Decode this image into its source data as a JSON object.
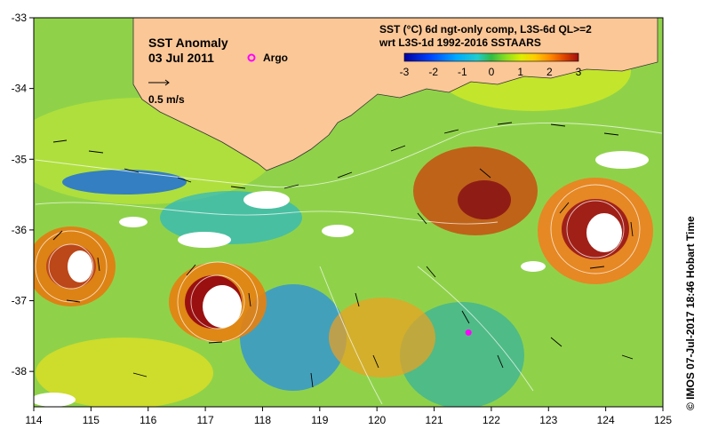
{
  "map": {
    "title": "SST Anomaly",
    "date": "03 Jul 2011",
    "scale_label": "0.5 m/s",
    "argo_label": "Argo",
    "argo_color": "#ff00ff",
    "land_color": "#fbc797",
    "product_line1": "SST (°C) 6d ngt-only comp, L3S-6d QL>=2",
    "product_line2": "wrt L3S-1d 1992-2016 SSTAARS",
    "credit": "© IMOS 07-Jul-2017 18:46 Hobart Time"
  },
  "axes": {
    "x_ticks": [
      "114",
      "115",
      "116",
      "117",
      "118",
      "119",
      "120",
      "121",
      "122",
      "123",
      "124",
      "125"
    ],
    "y_ticks": [
      "-33",
      "-34",
      "-35",
      "-36",
      "-37",
      "-38"
    ]
  },
  "colorbar": {
    "ticks": [
      "-3",
      "-2",
      "-1",
      "0",
      "1",
      "2",
      "3"
    ],
    "colors": [
      "#0000a0",
      "#0044ff",
      "#00aaff",
      "#22cccc",
      "#33bb44",
      "#88dd22",
      "#ddee00",
      "#ffcc00",
      "#ff8800",
      "#dd4400",
      "#a01010"
    ]
  },
  "features": {
    "argo_float": {
      "lon": 121.6,
      "lat": -37.45
    },
    "eddies": [
      {
        "lon": 114.6,
        "lat": -36.5,
        "kind": "warm"
      },
      {
        "lon": 117.2,
        "lat": -37.1,
        "kind": "warm"
      },
      {
        "lon": 124.0,
        "lat": -36.0,
        "kind": "warm"
      },
      {
        "lon": 121.2,
        "lat": -35.6,
        "kind": "warm"
      }
    ]
  }
}
